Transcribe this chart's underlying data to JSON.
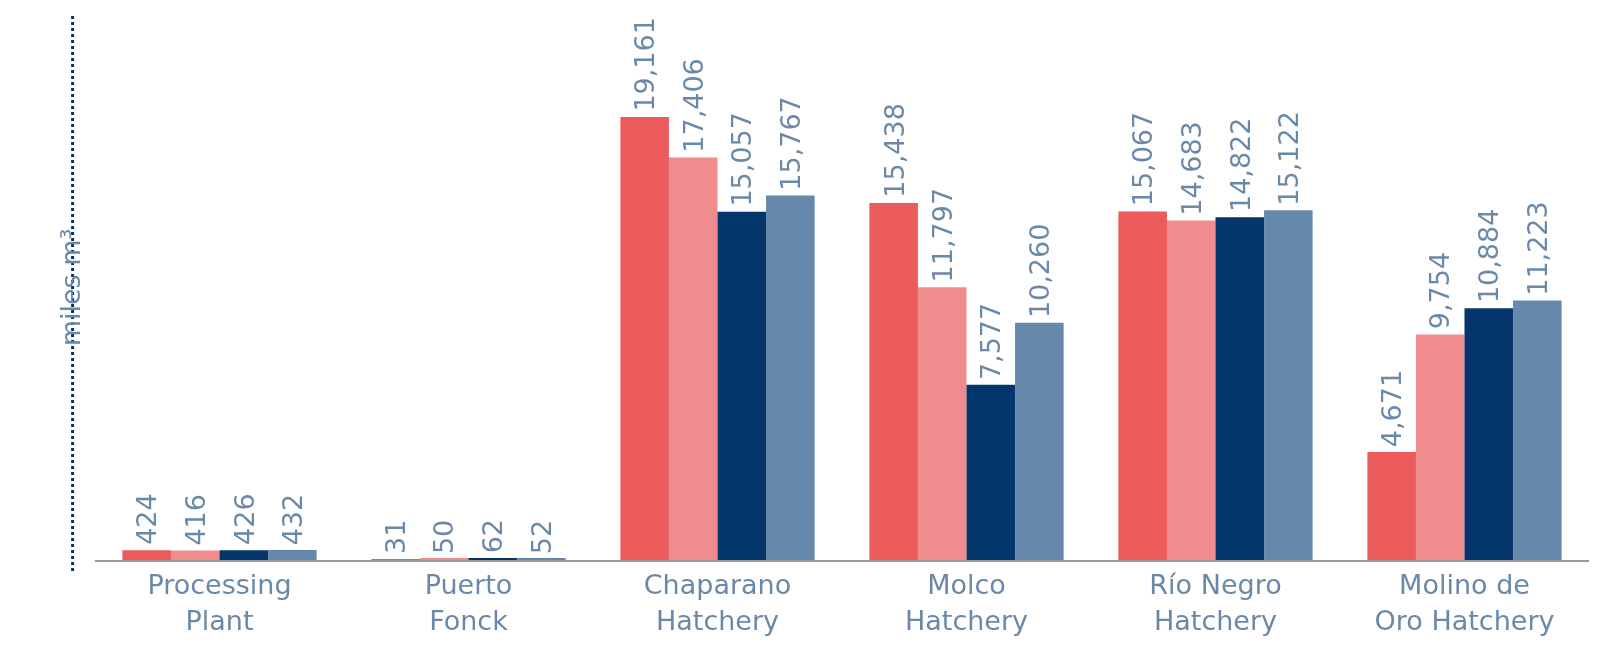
{
  "chart_data": {
    "type": "bar",
    "ylabel": "miles m³",
    "categories": [
      "Processing\nPlant",
      "Puerto\nFonck",
      "Chaparano\nHatchery",
      "Molco\nHatchery",
      "Río Negro\nHatchery",
      "Molino de\nOro Hatchery"
    ],
    "series": [
      {
        "color": "#eb5b5b",
        "values": [
          424,
          31,
          19161,
          15438,
          15067,
          4671
        ],
        "value_labels": [
          "424",
          "31",
          "19,161",
          "15,438",
          "15,067",
          "4,671"
        ]
      },
      {
        "color": "#f08c8d",
        "values": [
          416,
          50,
          17406,
          11797,
          14683,
          9754
        ],
        "value_labels": [
          "416",
          "50",
          "17,406",
          "11,797",
          "14,683",
          "9,754"
        ]
      },
      {
        "color": "#05366b",
        "values": [
          426,
          62,
          15057,
          7577,
          14822,
          10884
        ],
        "value_labels": [
          "426",
          "62",
          "15,057",
          "7,577",
          "14,822",
          "10,884"
        ]
      },
      {
        "color": "#6688aa",
        "values": [
          432,
          52,
          15767,
          10260,
          15122,
          11223
        ],
        "value_labels": [
          "432",
          "52",
          "15,767",
          "10,260",
          "15,122",
          "11,223"
        ]
      }
    ]
  }
}
